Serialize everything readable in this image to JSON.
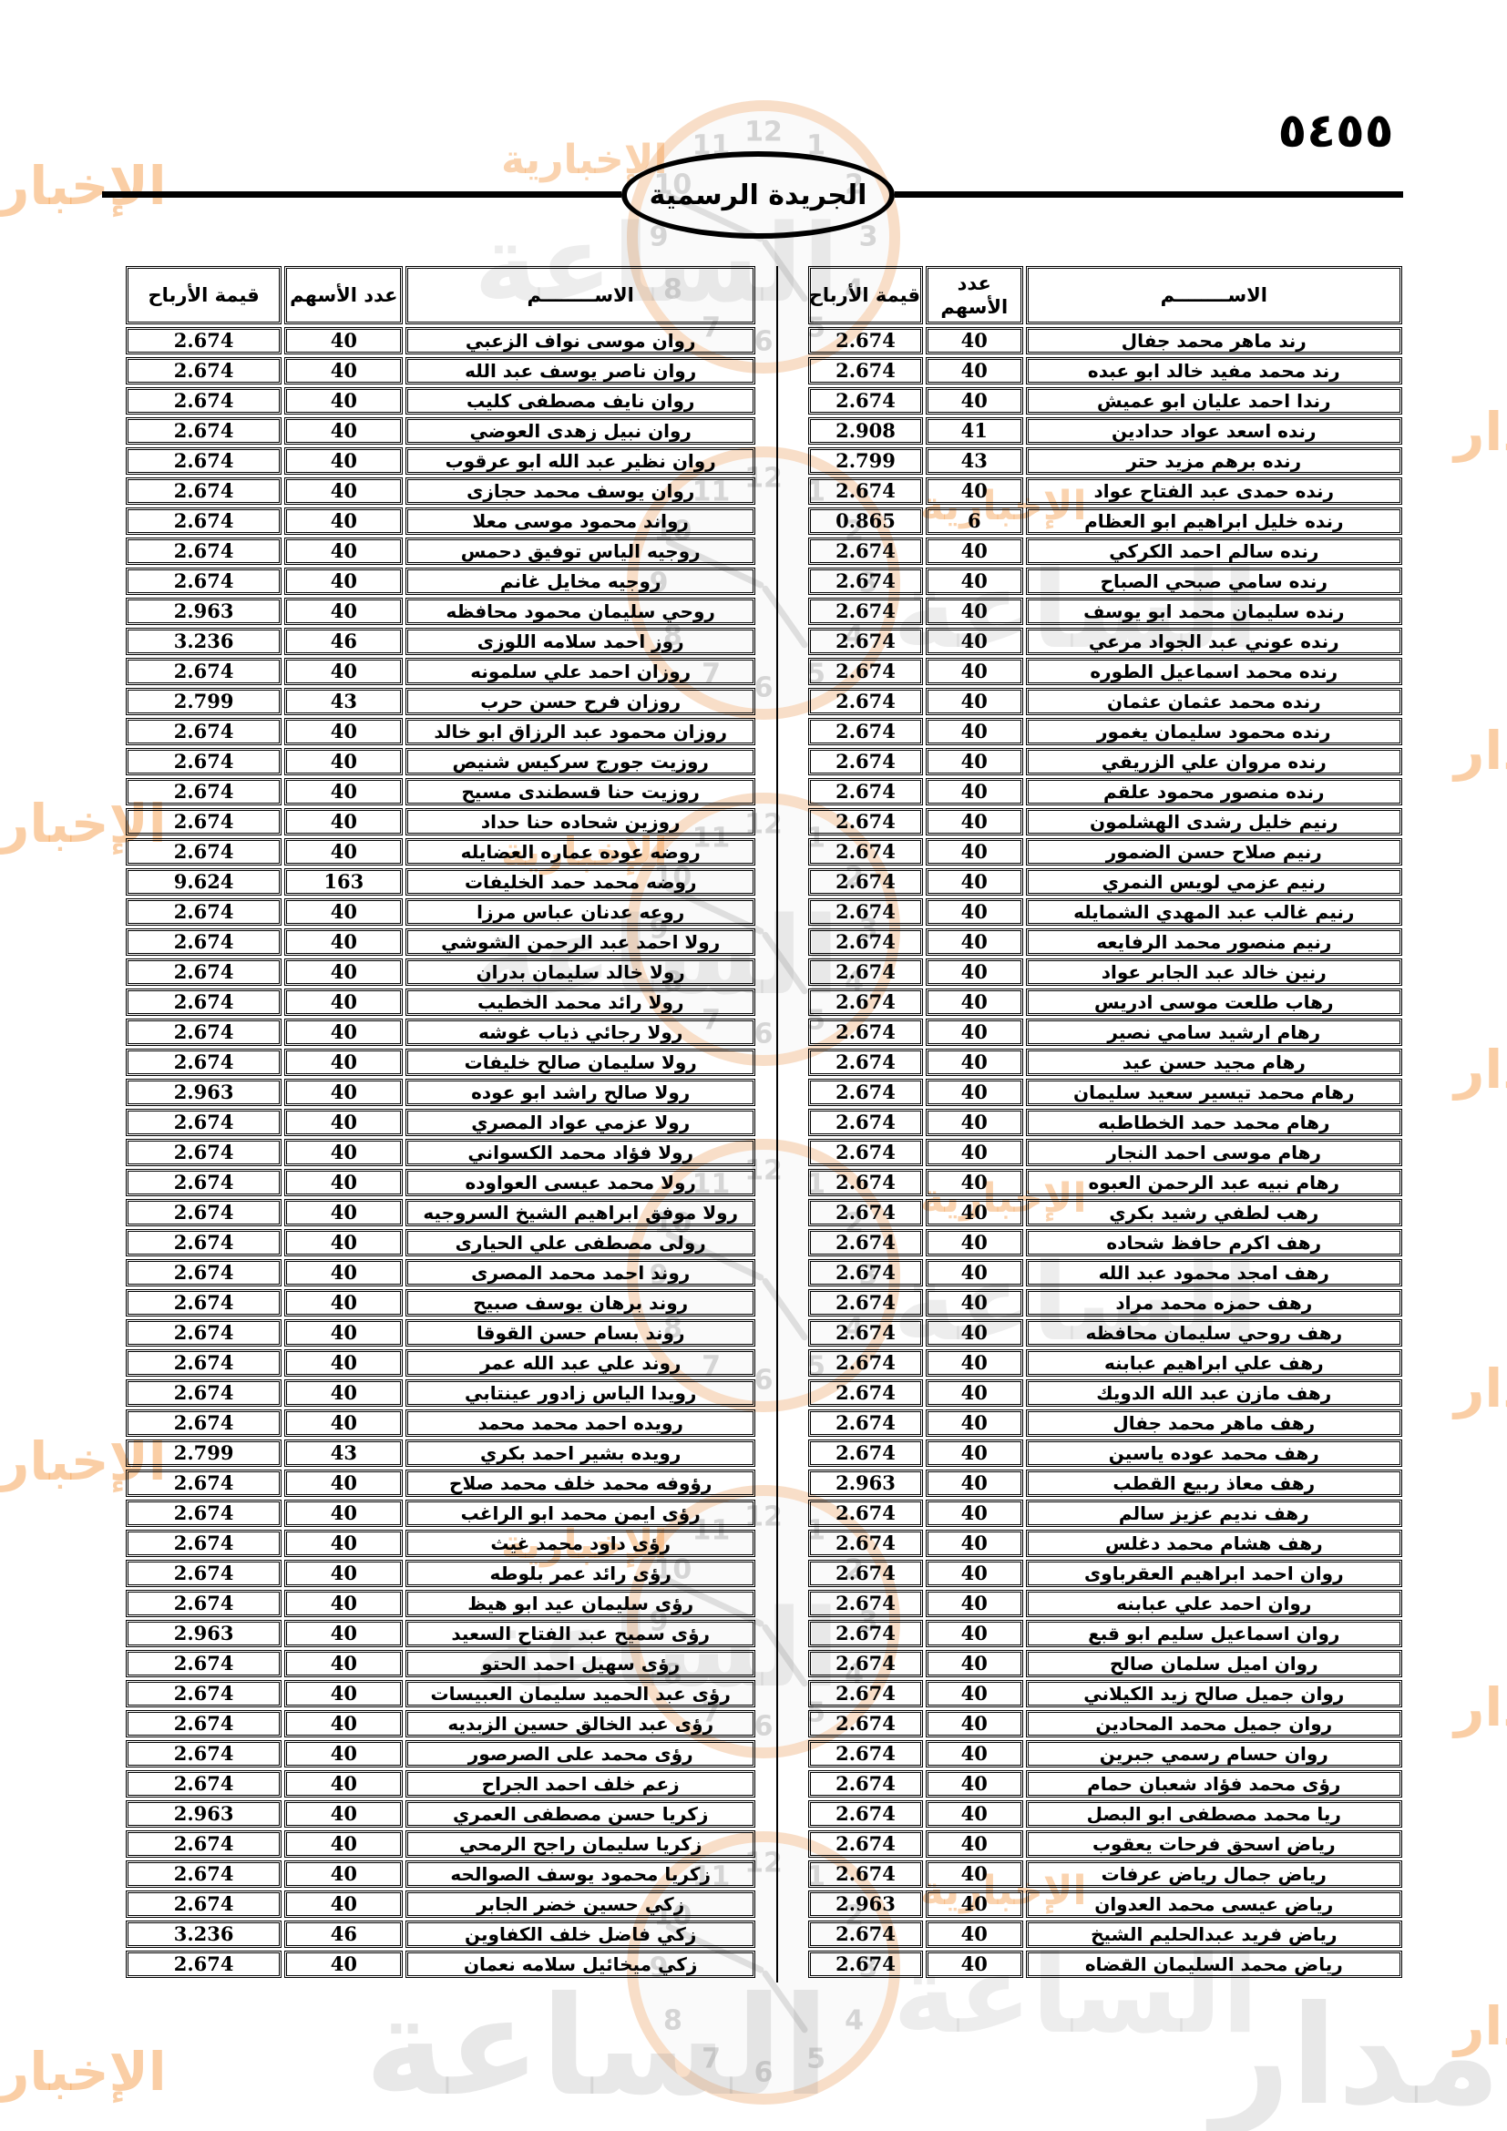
{
  "header": {
    "gazette_title": "الجريدة الرسمية",
    "page_number": "٥٤٥٥"
  },
  "columns": {
    "name": "الاســــــــم",
    "shares": "عدد الأسهم",
    "profit": "قيمة الأرباح"
  },
  "watermark": {
    "brand_word_1": "مدار",
    "brand_word_2": "الساعة",
    "brand_word_3": "الإخبارية",
    "clock_numbers": [
      "1",
      "2",
      "3",
      "4",
      "5",
      "6",
      "7",
      "8",
      "9",
      "10",
      "11",
      "12"
    ]
  },
  "tables": {
    "right": {
      "rows": [
        [
          "رند ماهر محمد جفال",
          "40",
          "2.674"
        ],
        [
          "رند محمد مفيد خالد ابو عبده",
          "40",
          "2.674"
        ],
        [
          "رندا احمد عليان ابو عميش",
          "40",
          "2.674"
        ],
        [
          "رنده اسعد عواد حدادين",
          "41",
          "2.908"
        ],
        [
          "رنده برهم مزيد حتر",
          "43",
          "2.799"
        ],
        [
          "رنده حمدى عبد الفتاح عواد",
          "40",
          "2.674"
        ],
        [
          "رنده خليل ابراهيم ابو العظام",
          "6",
          "0.865"
        ],
        [
          "رنده سالم احمد الكركي",
          "40",
          "2.674"
        ],
        [
          "رنده سامي صبحي الصباح",
          "40",
          "2.674"
        ],
        [
          "رنده سليمان محمد ابو يوسف",
          "40",
          "2.674"
        ],
        [
          "رنده عوني عبد الجواد مرعي",
          "40",
          "2.674"
        ],
        [
          "رنده محمد اسماعيل الطوره",
          "40",
          "2.674"
        ],
        [
          "رنده محمد عثمان عثمان",
          "40",
          "2.674"
        ],
        [
          "رنده محمود سليمان يغمور",
          "40",
          "2.674"
        ],
        [
          "رنده مروان علي الزريقي",
          "40",
          "2.674"
        ],
        [
          "رنده منصور محمود علقم",
          "40",
          "2.674"
        ],
        [
          "رنيم خليل رشدى الهشلمون",
          "40",
          "2.674"
        ],
        [
          "رنيم صلاح حسن الضمور",
          "40",
          "2.674"
        ],
        [
          "رنيم عزمي لويس النمري",
          "40",
          "2.674"
        ],
        [
          "رنيم غالب عبد المهدي الشمايله",
          "40",
          "2.674"
        ],
        [
          "رنيم منصور محمد الرفايعه",
          "40",
          "2.674"
        ],
        [
          "رنين خالد عبد الجابر عواد",
          "40",
          "2.674"
        ],
        [
          "رهاب طلعت موسى ادريس",
          "40",
          "2.674"
        ],
        [
          "رهام ارشيد سامي نصير",
          "40",
          "2.674"
        ],
        [
          "رهام مجيد حسن عيد",
          "40",
          "2.674"
        ],
        [
          "رهام محمد تيسير سعيد سليمان",
          "40",
          "2.674"
        ],
        [
          "رهام محمد حمد الخطاطبه",
          "40",
          "2.674"
        ],
        [
          "رهام موسى احمد النجار",
          "40",
          "2.674"
        ],
        [
          "رهام نبيه عبد الرحمن العبوه",
          "40",
          "2.674"
        ],
        [
          "رهب لطفي رشيد بكري",
          "40",
          "2.674"
        ],
        [
          "رهف اكرم حافظ شحاده",
          "40",
          "2.674"
        ],
        [
          "رهف امجد محمود عبد الله",
          "40",
          "2.674"
        ],
        [
          "رهف حمزه محمد مراد",
          "40",
          "2.674"
        ],
        [
          "رهف روحي سليمان محافظه",
          "40",
          "2.674"
        ],
        [
          "رهف علي ابراهيم عبابنه",
          "40",
          "2.674"
        ],
        [
          "رهف مازن عبد الله الدويك",
          "40",
          "2.674"
        ],
        [
          "رهف ماهر محمد جفال",
          "40",
          "2.674"
        ],
        [
          "رهف محمد عوده ياسين",
          "40",
          "2.674"
        ],
        [
          "رهف معاذ ربيع القطب",
          "40",
          "2.963"
        ],
        [
          "رهف نديم عزيز سالم",
          "40",
          "2.674"
        ],
        [
          "رهف هشام محمد دغلس",
          "40",
          "2.674"
        ],
        [
          "روان احمد ابراهيم العقرباوى",
          "40",
          "2.674"
        ],
        [
          "روان احمد علي عبابنه",
          "40",
          "2.674"
        ],
        [
          "روان اسماعيل سليم ابو قبع",
          "40",
          "2.674"
        ],
        [
          "روان اميل سلمان صالح",
          "40",
          "2.674"
        ],
        [
          "روان جميل صالح زيد الكيلاني",
          "40",
          "2.674"
        ],
        [
          "روان جميل محمد المحادين",
          "40",
          "2.674"
        ],
        [
          "روان حسام رسمي جبرين",
          "40",
          "2.674"
        ],
        [
          "رؤى محمد فؤاد شعبان حمام",
          "40",
          "2.674"
        ],
        [
          "ريا محمد مصطفى ابو البصل",
          "40",
          "2.674"
        ],
        [
          "رياض اسحق فرحات يعقوب",
          "40",
          "2.674"
        ],
        [
          "رياض جمال رياض عرفات",
          "40",
          "2.674"
        ],
        [
          "رياض عيسى محمد العدوان",
          "40",
          "2.963"
        ],
        [
          "رياض فريد عبدالحليم الشيخ",
          "40",
          "2.674"
        ],
        [
          "رياض محمد السليمان القضاه",
          "40",
          "2.674"
        ]
      ]
    },
    "left": {
      "rows": [
        [
          "روان موسى نواف الزعبي",
          "40",
          "2.674"
        ],
        [
          "روان ناصر يوسف عبد الله",
          "40",
          "2.674"
        ],
        [
          "روان نايف مصطفى كليب",
          "40",
          "2.674"
        ],
        [
          "روان نبيل زهدى العوضي",
          "40",
          "2.674"
        ],
        [
          "روان نظير عبد الله ابو عرقوب",
          "40",
          "2.674"
        ],
        [
          "روان يوسف محمد حجازى",
          "40",
          "2.674"
        ],
        [
          "رواند محمود موسى معلا",
          "40",
          "2.674"
        ],
        [
          "روجيه الياس توفيق دحمس",
          "40",
          "2.674"
        ],
        [
          "روجيه مخايل غانم",
          "40",
          "2.674"
        ],
        [
          "روحي سليمان محمود محافظه",
          "40",
          "2.963"
        ],
        [
          "روز احمد سلامه اللوزى",
          "46",
          "3.236"
        ],
        [
          "روزان احمد علي سلمونه",
          "40",
          "2.674"
        ],
        [
          "روزان فرح حسن حرب",
          "43",
          "2.799"
        ],
        [
          "روزان محمود عبد الرزاق ابو خالد",
          "40",
          "2.674"
        ],
        [
          "روزيت جورج سركيس شنيص",
          "40",
          "2.674"
        ],
        [
          "روزيت حنا قسطندى مسيح",
          "40",
          "2.674"
        ],
        [
          "روزين شحاده حنا حداد",
          "40",
          "2.674"
        ],
        [
          "روضه عوده عماره العضايله",
          "40",
          "2.674"
        ],
        [
          "روضه محمد حمد الخليفات",
          "163",
          "9.624"
        ],
        [
          "روعه عدنان عباس مرزا",
          "40",
          "2.674"
        ],
        [
          "رولا احمد عبد الرحمن الشوشي",
          "40",
          "2.674"
        ],
        [
          "رولا خالد سليمان بدران",
          "40",
          "2.674"
        ],
        [
          "رولا رائد محمد الخطيب",
          "40",
          "2.674"
        ],
        [
          "رولا رجائي ذياب غوشه",
          "40",
          "2.674"
        ],
        [
          "رولا سليمان صالح خليفات",
          "40",
          "2.674"
        ],
        [
          "رولا صالح راشد ابو عوده",
          "40",
          "2.963"
        ],
        [
          "رولا عزمي عواد المصري",
          "40",
          "2.674"
        ],
        [
          "رولا فؤاد محمد الكسواني",
          "40",
          "2.674"
        ],
        [
          "رولا محمد عيسى العواوده",
          "40",
          "2.674"
        ],
        [
          "رولا موفق ابراهيم الشيخ السروجيه",
          "40",
          "2.674"
        ],
        [
          "رولى مصطفى علي الحيارى",
          "40",
          "2.674"
        ],
        [
          "روند احمد محمد المصرى",
          "40",
          "2.674"
        ],
        [
          "روند برهان يوسف صبيح",
          "40",
          "2.674"
        ],
        [
          "روند بسام حسن القوقا",
          "40",
          "2.674"
        ],
        [
          "روند علي عبد الله عمر",
          "40",
          "2.674"
        ],
        [
          "رويدا الياس زادور عينتابي",
          "40",
          "2.674"
        ],
        [
          "رويده احمد محمد محمد",
          "40",
          "2.674"
        ],
        [
          "رويده بشير احمد بكري",
          "43",
          "2.799"
        ],
        [
          "رؤوفه محمد خلف محمد صلاح",
          "40",
          "2.674"
        ],
        [
          "رؤى ايمن محمد ابو الراغب",
          "40",
          "2.674"
        ],
        [
          "رؤى داود محمد غيث",
          "40",
          "2.674"
        ],
        [
          "رؤى رائد عمر بلوطه",
          "40",
          "2.674"
        ],
        [
          "رؤى سليمان عيد ابو هيظ",
          "40",
          "2.674"
        ],
        [
          "رؤى سميح عبد الفتاح السعيد",
          "40",
          "2.963"
        ],
        [
          "رؤى سهيل احمد الحتو",
          "40",
          "2.674"
        ],
        [
          "رؤى عبد الحميد سليمان العبيسات",
          "40",
          "2.674"
        ],
        [
          "رؤى عبد الخالق حسين الزبديه",
          "40",
          "2.674"
        ],
        [
          "رؤى محمد على الصرصور",
          "40",
          "2.674"
        ],
        [
          "زعم خلف احمد الجراح",
          "40",
          "2.674"
        ],
        [
          "زكريا حسن مصطفى العمري",
          "40",
          "2.963"
        ],
        [
          "زكريا سليمان راجح الرمحي",
          "40",
          "2.674"
        ],
        [
          "زكريا محمود يوسف الصوالحه",
          "40",
          "2.674"
        ],
        [
          "زكي حسين خضر الجابر",
          "40",
          "2.674"
        ],
        [
          "زكي فاضل خلف الكفاوين",
          "46",
          "3.236"
        ],
        [
          "زكي ميخائيل سلامه نعمان",
          "40",
          "2.674"
        ]
      ]
    }
  }
}
